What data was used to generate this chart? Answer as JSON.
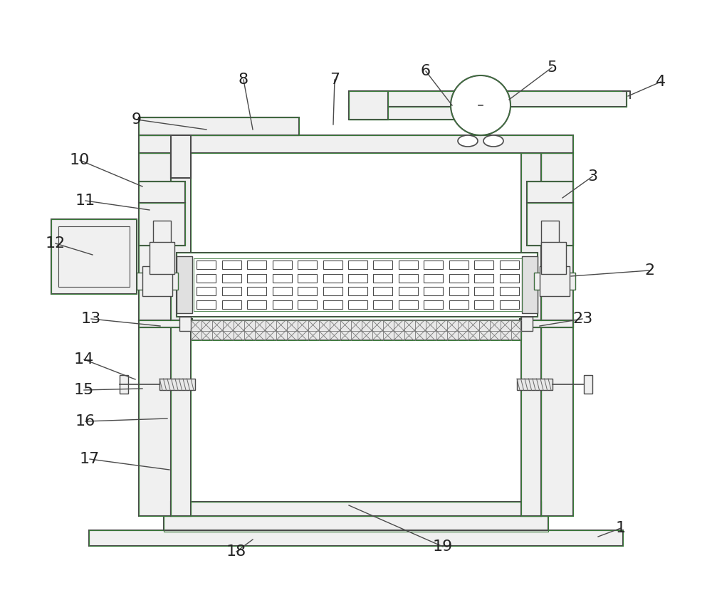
{
  "bg_color": "#ffffff",
  "line_color": "#4a4a4a",
  "green_color": "#3a7a3a",
  "label_color": "#222222",
  "figsize": [
    10.0,
    8.43
  ],
  "dpi": 100
}
